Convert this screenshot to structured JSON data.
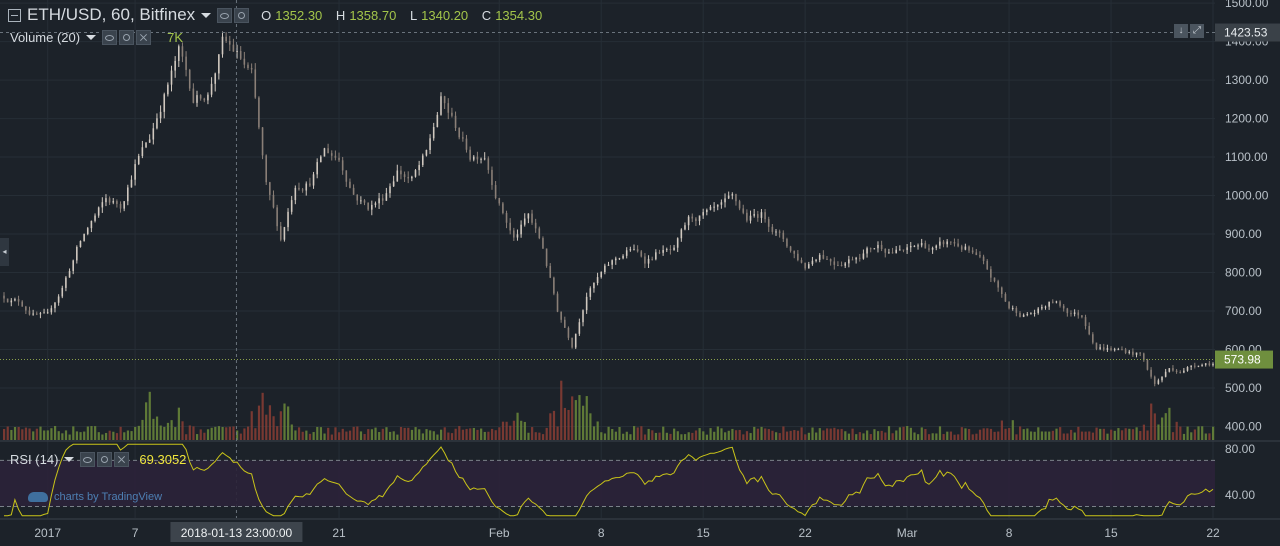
{
  "header": {
    "symbol": "ETH/USD, 60, Bitfinex",
    "ohlc": [
      {
        "k": "O",
        "v": "1352.30"
      },
      {
        "k": "H",
        "v": "1358.70"
      },
      {
        "k": "L",
        "v": "1340.20"
      },
      {
        "k": "C",
        "v": "1354.30"
      }
    ]
  },
  "volume_indicator": {
    "label": "Volume (20)",
    "value": "7K"
  },
  "rsi_indicator": {
    "label": "RSI (14)",
    "value": "69.3052"
  },
  "attribution": "charts by TradingView",
  "colors": {
    "background": "#1c2229",
    "candle_up": "#d0c8bf",
    "candle_down": "#8a7f77",
    "volume_up": "#6b8a3a",
    "volume_down": "#8a3d34",
    "rsi_line": "#c9c419",
    "rsi_band": "#2b2238",
    "last_price": "#6f8f3e",
    "high_label": "#3a4148",
    "crosshair_label": "#3d444c"
  },
  "chart_data": [
    {
      "type": "candlestick",
      "title": "ETH/USD, 60, Bitfinex",
      "y_ticks": [
        "400.00",
        "500.00",
        "600.00",
        "700.00",
        "800.00",
        "900.00",
        "1000.00",
        "1100.00",
        "1200.00",
        "1300.00",
        "1400.00",
        "1500.00"
      ],
      "ylim": [
        365,
        1508
      ],
      "x_ticks": [
        {
          "label": "2017",
          "date": "2018-01-01"
        },
        {
          "label": "7",
          "date": "2018-01-07"
        },
        {
          "label": "21",
          "date": "2018-01-21"
        },
        {
          "label": "Feb",
          "date": "2018-02-01"
        },
        {
          "label": "8",
          "date": "2018-02-08"
        },
        {
          "label": "15",
          "date": "2018-02-15"
        },
        {
          "label": "22",
          "date": "2018-02-22"
        },
        {
          "label": "Mar",
          "date": "2018-03-01"
        },
        {
          "label": "8",
          "date": "2018-03-08"
        },
        {
          "label": "15",
          "date": "2018-03-15"
        },
        {
          "label": "22",
          "date": "2018-03-22"
        }
      ],
      "xlim": [
        "2017-12-29",
        "2018-03-22"
      ],
      "crosshair_label": "2018-01-13 23:00:00",
      "high_marker": "1423.53",
      "last_price": "573.98",
      "series": [
        {
          "name": "ETH/USD",
          "points": [
            [
              "2017-12-29",
              740
            ],
            [
              "2017-12-30",
              730
            ],
            [
              "2017-12-31",
              700
            ],
            [
              "2018-01-01",
              680
            ],
            [
              "2018-01-02",
              760
            ],
            [
              "2018-01-03",
              860
            ],
            [
              "2018-01-04",
              930
            ],
            [
              "2018-01-05",
              980
            ],
            [
              "2018-01-06",
              970
            ],
            [
              "2018-01-07",
              1090
            ],
            [
              "2018-01-08",
              1150
            ],
            [
              "2018-01-09",
              1270
            ],
            [
              "2018-01-10",
              1370
            ],
            [
              "2018-01-11",
              1250
            ],
            [
              "2018-01-12",
              1270
            ],
            [
              "2018-01-13",
              1400
            ],
            [
              "2018-01-14",
              1360
            ],
            [
              "2018-01-15",
              1300
            ],
            [
              "2018-01-16",
              1000
            ],
            [
              "2018-01-17",
              870
            ],
            [
              "2018-01-18",
              1030
            ],
            [
              "2018-01-19",
              1050
            ],
            [
              "2018-01-20",
              1120
            ],
            [
              "2018-01-21",
              1100
            ],
            [
              "2018-01-22",
              1020
            ],
            [
              "2018-01-23",
              980
            ],
            [
              "2018-01-24",
              1000
            ],
            [
              "2018-01-25",
              1080
            ],
            [
              "2018-01-26",
              1050
            ],
            [
              "2018-01-27",
              1100
            ],
            [
              "2018-01-28",
              1240
            ],
            [
              "2018-01-29",
              1170
            ],
            [
              "2018-01-30",
              1100
            ],
            [
              "2018-01-31",
              1120
            ],
            [
              "2018-02-01",
              1000
            ],
            [
              "2018-02-02",
              900
            ],
            [
              "2018-02-03",
              950
            ],
            [
              "2018-02-04",
              860
            ],
            [
              "2018-02-05",
              700
            ],
            [
              "2018-02-06",
              620
            ],
            [
              "2018-02-07",
              760
            ],
            [
              "2018-02-08",
              800
            ],
            [
              "2018-02-09",
              830
            ],
            [
              "2018-02-10",
              860
            ],
            [
              "2018-02-11",
              830
            ],
            [
              "2018-02-12",
              860
            ],
            [
              "2018-02-13",
              850
            ],
            [
              "2018-02-14",
              920
            ],
            [
              "2018-02-15",
              940
            ],
            [
              "2018-02-16",
              940
            ],
            [
              "2018-02-17",
              960
            ],
            [
              "2018-02-18",
              920
            ],
            [
              "2018-02-19",
              940
            ],
            [
              "2018-02-20",
              910
            ],
            [
              "2018-02-21",
              860
            ],
            [
              "2018-02-22",
              820
            ],
            [
              "2018-02-23",
              860
            ],
            [
              "2018-02-24",
              840
            ],
            [
              "2018-02-25",
              850
            ],
            [
              "2018-02-26",
              870
            ],
            [
              "2018-02-27",
              880
            ],
            [
              "2018-02-28",
              870
            ],
            [
              "2018-03-01",
              860
            ],
            [
              "2018-03-02",
              870
            ],
            [
              "2018-03-03",
              860
            ],
            [
              "2018-03-04",
              870
            ],
            [
              "2018-03-05",
              860
            ],
            [
              "2018-03-06",
              820
            ],
            [
              "2018-03-07",
              760
            ],
            [
              "2018-03-08",
              700
            ],
            [
              "2018-03-09",
              690
            ],
            [
              "2018-03-10",
              700
            ],
            [
              "2018-03-11",
              720
            ],
            [
              "2018-03-12",
              700
            ],
            [
              "2018-03-13",
              690
            ],
            [
              "2018-03-14",
              620
            ],
            [
              "2018-03-15",
              610
            ],
            [
              "2018-03-16",
              600
            ],
            [
              "2018-03-17",
              590
            ],
            [
              "2018-03-18",
              510
            ],
            [
              "2018-03-19",
              550
            ],
            [
              "2018-03-20",
              550
            ],
            [
              "2018-03-21",
              570
            ],
            [
              "2018-03-22",
              574
            ]
          ]
        }
      ]
    },
    {
      "type": "bar",
      "name": "Volume (20)",
      "last_value": "7K",
      "spikes": [
        [
          "2018-01-08",
          1.9
        ],
        [
          "2018-01-10",
          1.3
        ],
        [
          "2018-01-15",
          1.4
        ],
        [
          "2018-01-16",
          2.6
        ],
        [
          "2018-01-17",
          2.2
        ],
        [
          "2018-02-02",
          1.4
        ],
        [
          "2018-02-05",
          2.4
        ],
        [
          "2018-02-06",
          2.8
        ],
        [
          "2018-02-07",
          1.8
        ],
        [
          "2018-03-08",
          1.1
        ],
        [
          "2018-03-18",
          2.2
        ],
        [
          "2018-03-19",
          1.5
        ]
      ]
    },
    {
      "type": "line",
      "name": "RSI (14)",
      "last_value": "69.3052",
      "y_ticks": [
        "40.00",
        "80.00"
      ],
      "ylim": [
        20,
        86
      ],
      "bands": [
        30,
        70
      ]
    }
  ]
}
